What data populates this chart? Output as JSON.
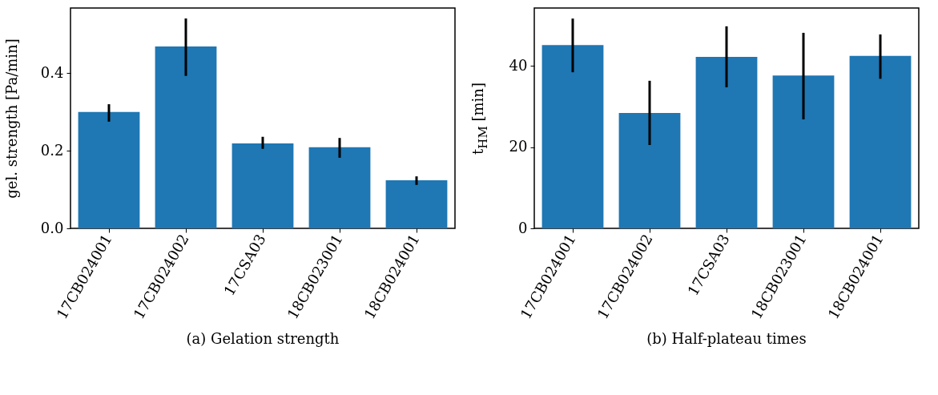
{
  "chart_data": [
    {
      "type": "bar",
      "title": "(a) Gelation strength",
      "ylabel": "gel. strength [Pa/min]",
      "categories": [
        "17CB024001",
        "17CB024002",
        "17CSA03",
        "18CB023001",
        "18CB024001"
      ],
      "series": [
        {
          "color": "#1f77b4",
          "values": [
            0.3,
            0.469,
            0.219,
            0.209,
            0.124
          ],
          "errors": [
            [
              0.275,
              0.32
            ],
            [
              0.393,
              0.541
            ],
            [
              0.205,
              0.236
            ],
            [
              0.182,
              0.233
            ],
            [
              0.112,
              0.134
            ]
          ]
        }
      ],
      "ylim": [
        0,
        0.568
      ],
      "yticks": [
        {
          "value": 0,
          "label": "0.0"
        },
        {
          "value": 0.2,
          "label": "0.2"
        },
        {
          "value": 0.4,
          "label": "0.4"
        }
      ],
      "grid": false
    },
    {
      "type": "bar",
      "title": "(b) Half-plateau times",
      "ylabel": "t$_{HM}$ [min]",
      "categories": [
        "17CB024001",
        "17CB024002",
        "17CSA03",
        "18CB023001",
        "18CB024001"
      ],
      "series": [
        {
          "color": "#1f77b4",
          "values": [
            45.1,
            28.4,
            42.2,
            37.6,
            42.4
          ],
          "errors": [
            [
              38.4,
              51.6
            ],
            [
              20.5,
              36.3
            ],
            [
              34.7,
              49.7
            ],
            [
              26.8,
              48.1
            ],
            [
              36.8,
              47.7
            ]
          ]
        }
      ],
      "ylim": [
        0,
        54.2
      ],
      "yticks": [
        0,
        20,
        40
      ],
      "grid": false
    }
  ]
}
